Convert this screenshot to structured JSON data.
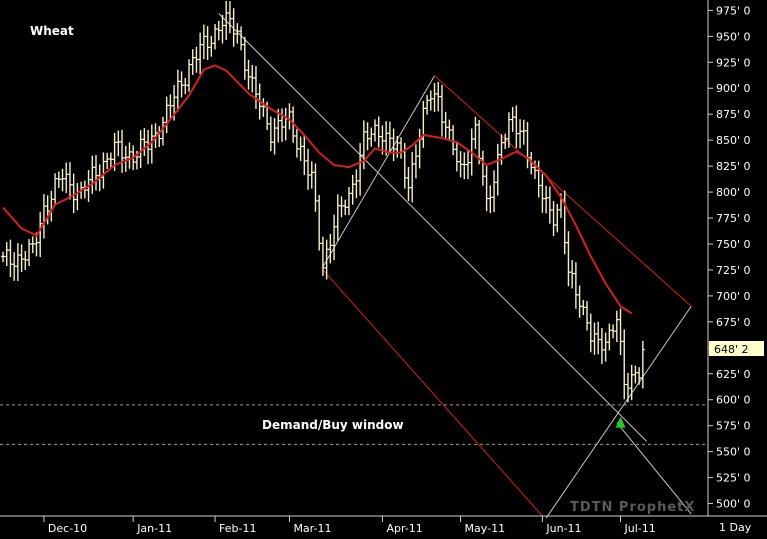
{
  "chart_data": {
    "type": "ohlc",
    "title": "Wheat",
    "annotation": "Demand/Buy window",
    "watermark": "TDTN ProphetX",
    "interval_label": "1 Day",
    "last_price_label": "648' 2",
    "last_price": 648.25,
    "ylim": [
      488,
      985
    ],
    "y_ticks": [
      500,
      525,
      550,
      575,
      600,
      625,
      650,
      675,
      700,
      725,
      750,
      775,
      800,
      825,
      850,
      875,
      900,
      925,
      950,
      975
    ],
    "y_tick_labels": [
      "500' 0",
      "525' 0",
      "550' 0",
      "575' 0",
      "600' 0",
      "625' 0",
      "650' 0",
      "675' 0",
      "700' 0",
      "725' 0",
      "750' 0",
      "775' 0",
      "800' 0",
      "825' 0",
      "850' 0",
      "875' 0",
      "900' 0",
      "925' 0",
      "950' 0",
      "975' 0"
    ],
    "x_ticks": [
      {
        "label": "Dec-10",
        "bar": 11
      },
      {
        "label": "Jan-11",
        "bar": 35
      },
      {
        "label": "Feb-11",
        "bar": 57
      },
      {
        "label": "Mar-11",
        "bar": 77
      },
      {
        "label": "Apr-11",
        "bar": 102
      },
      {
        "label": "May-11",
        "bar": 123
      },
      {
        "label": "Jun-11",
        "bar": 145
      },
      {
        "label": "Jul-11",
        "bar": 166
      }
    ],
    "price_anchors": [
      [
        0,
        733
      ],
      [
        8,
        742
      ],
      [
        11,
        785
      ],
      [
        16,
        815
      ],
      [
        21,
        798
      ],
      [
        25,
        820
      ],
      [
        30,
        840
      ],
      [
        35,
        836
      ],
      [
        39,
        845
      ],
      [
        44,
        875
      ],
      [
        50,
        922
      ],
      [
        55,
        945
      ],
      [
        59,
        965
      ],
      [
        63,
        955
      ],
      [
        67,
        900
      ],
      [
        72,
        860
      ],
      [
        77,
        868
      ],
      [
        80,
        842
      ],
      [
        83,
        810
      ],
      [
        86,
        730
      ],
      [
        89,
        770
      ],
      [
        93,
        795
      ],
      [
        97,
        850
      ],
      [
        102,
        860
      ],
      [
        106,
        840
      ],
      [
        109,
        810
      ],
      [
        113,
        870
      ],
      [
        115,
        895
      ],
      [
        117,
        892
      ],
      [
        120,
        850
      ],
      [
        123,
        820
      ],
      [
        127,
        860
      ],
      [
        130,
        785
      ],
      [
        134,
        850
      ],
      [
        137,
        865
      ],
      [
        140,
        858
      ],
      [
        143,
        810
      ],
      [
        146,
        790
      ],
      [
        148,
        780
      ],
      [
        150,
        785
      ],
      [
        152,
        720
      ],
      [
        155,
        700
      ],
      [
        158,
        660
      ],
      [
        160,
        650
      ],
      [
        163,
        665
      ],
      [
        165,
        680
      ],
      [
        167,
        610
      ],
      [
        169,
        622
      ],
      [
        171,
        632
      ],
      [
        172,
        648
      ]
    ],
    "moving_average": [
      [
        0,
        785
      ],
      [
        5,
        765
      ],
      [
        9,
        758
      ],
      [
        14,
        788
      ],
      [
        18,
        795
      ],
      [
        24,
        808
      ],
      [
        30,
        826
      ],
      [
        35,
        833
      ],
      [
        40,
        848
      ],
      [
        45,
        870
      ],
      [
        50,
        893
      ],
      [
        54,
        918
      ],
      [
        57,
        922
      ],
      [
        60,
        917
      ],
      [
        66,
        895
      ],
      [
        72,
        880
      ],
      [
        77,
        870
      ],
      [
        81,
        855
      ],
      [
        85,
        838
      ],
      [
        89,
        826
      ],
      [
        93,
        824
      ],
      [
        97,
        830
      ],
      [
        100,
        842
      ],
      [
        104,
        838
      ],
      [
        107,
        838
      ],
      [
        110,
        845
      ],
      [
        113,
        855
      ],
      [
        118,
        852
      ],
      [
        122,
        848
      ],
      [
        126,
        838
      ],
      [
        130,
        826
      ],
      [
        134,
        832
      ],
      [
        138,
        839
      ],
      [
        141,
        833
      ],
      [
        146,
        816
      ],
      [
        150,
        795
      ],
      [
        154,
        768
      ],
      [
        158,
        738
      ],
      [
        162,
        712
      ],
      [
        166,
        690
      ],
      [
        169,
        683
      ]
    ],
    "trend_lines": [
      {
        "color": "#c8c8c8",
        "from": [
          58,
          972
        ],
        "to": [
          173,
          560
        ]
      },
      {
        "color": "#c8c8c8",
        "from": [
          86,
          728
        ],
        "to": [
          116,
          912
        ]
      },
      {
        "color": "#d42020",
        "from": [
          86,
          725
        ],
        "to": [
          145,
          488
        ]
      },
      {
        "color": "#d42020",
        "from": [
          116,
          912
        ],
        "to": [
          185,
          690
        ]
      },
      {
        "color": "#c8c8c8",
        "from": [
          146,
          486
        ],
        "to": [
          185,
          690
        ]
      },
      {
        "color": "#c8c8c8",
        "from": [
          165,
          578
        ],
        "to": [
          185,
          490
        ]
      }
    ],
    "buy_window": [
      557,
      595
    ],
    "signal_marker": {
      "bar": 166,
      "price": 576
    },
    "colors": {
      "background": "#000000",
      "bars": "#f5f0c8",
      "moving_average": "#d42020",
      "buy_signal": "#22cc22",
      "last_price_box": "#ffffcc"
    }
  }
}
